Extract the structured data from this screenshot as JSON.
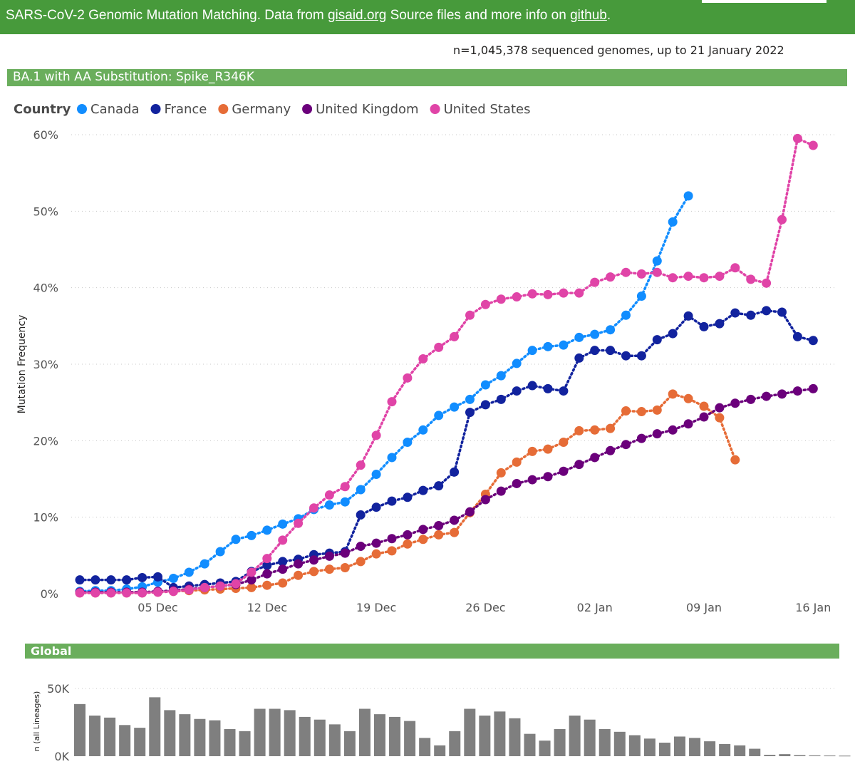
{
  "header": {
    "text_before": "SARS-CoV-2 Genomic Mutation Matching. Data from ",
    "link1": "gisaid.org",
    "text_middle": " Source files and more info on ",
    "link2": "github",
    "text_after": "."
  },
  "subtitle": "n=1,045,378 sequenced genomes, up to 21 January 2022",
  "panel_title": "BA.1 with AA Substitution: Spike_R346K",
  "global_title": "Global",
  "colors": {
    "Canada": "#118dff",
    "France": "#12239e",
    "Germany": "#e66c37",
    "United Kingdom": "#6b007b",
    "United States": "#e044a7",
    "bars": "#7f7f7f",
    "header": "#479a3b",
    "section": "#6aae5c"
  },
  "chart_data": [
    {
      "type": "line",
      "legend_title": "Country",
      "legend_position": "top-left",
      "ylabel": "Mutation Frequency",
      "ylim": [
        0,
        60
      ],
      "y_ticks": [
        "0%",
        "10%",
        "20%",
        "30%",
        "40%",
        "50%",
        "60%"
      ],
      "y_tick_values": [
        0,
        10,
        20,
        30,
        40,
        50,
        60
      ],
      "x_start": "2021-11-30",
      "x_ticks": [
        "05 Dec",
        "12 Dec",
        "19 Dec",
        "26 Dec",
        "02 Jan",
        "09 Jan",
        "16 Jan"
      ],
      "x_tick_dates": [
        "2021-12-05",
        "2021-12-12",
        "2021-12-19",
        "2021-12-26",
        "2022-01-02",
        "2022-01-09",
        "2022-01-16"
      ],
      "grid": true,
      "series": [
        {
          "name": "Canada",
          "start": "2021-11-30",
          "values": [
            0.3,
            0.4,
            0.4,
            0.6,
            0.9,
            1.5,
            2.0,
            2.8,
            3.9,
            5.5,
            7.1,
            7.6,
            8.3,
            9.1,
            9.8,
            11.0,
            11.6,
            12.0,
            13.6,
            15.6,
            17.8,
            19.8,
            21.4,
            23.3,
            24.4,
            25.4,
            27.3,
            28.5,
            30.1,
            31.8,
            32.3,
            32.5,
            33.5,
            33.9,
            34.5,
            36.4,
            38.9,
            43.5,
            48.6,
            52.0
          ]
        },
        {
          "name": "France",
          "start": "2021-11-30",
          "values": [
            1.8,
            1.8,
            1.8,
            1.8,
            2.1,
            2.2,
            0.8,
            1.0,
            1.2,
            1.4,
            1.6,
            2.9,
            3.7,
            4.2,
            4.5,
            5.1,
            5.3,
            5.5,
            10.3,
            11.3,
            12.1,
            12.6,
            13.5,
            14.1,
            15.9,
            23.7,
            24.7,
            25.4,
            26.5,
            27.2,
            26.8,
            26.5,
            30.8,
            31.8,
            31.8,
            31.1,
            31.1,
            33.2,
            34.0,
            36.3,
            34.9,
            35.3,
            36.7,
            36.4,
            37.0,
            36.8,
            33.6,
            33.1
          ]
        },
        {
          "name": "Germany",
          "start": "2021-11-30",
          "values": [
            0.1,
            0.1,
            0.1,
            0.1,
            0.1,
            0.2,
            0.3,
            0.4,
            0.5,
            0.6,
            0.7,
            0.8,
            1.1,
            1.4,
            2.4,
            2.9,
            3.2,
            3.4,
            4.2,
            5.2,
            5.6,
            6.5,
            7.1,
            7.7,
            8.0,
            10.6,
            13.0,
            15.8,
            17.2,
            18.6,
            18.9,
            19.8,
            21.3,
            21.4,
            21.6,
            23.9,
            23.8,
            24.0,
            26.1,
            25.5,
            24.5,
            23.0,
            17.5
          ]
        },
        {
          "name": "United Kingdom",
          "start": "2021-11-30",
          "values": [
            0.2,
            0.2,
            0.2,
            0.2,
            0.2,
            0.3,
            0.4,
            0.6,
            0.8,
            1.0,
            1.2,
            1.8,
            2.6,
            3.2,
            3.9,
            4.4,
            4.9,
            5.3,
            6.2,
            6.6,
            7.2,
            7.7,
            8.4,
            8.9,
            9.6,
            10.7,
            12.3,
            13.4,
            14.4,
            14.9,
            15.3,
            16.0,
            16.9,
            17.8,
            18.7,
            19.5,
            20.3,
            20.9,
            21.4,
            22.2,
            23.1,
            24.3,
            24.9,
            25.4,
            25.8,
            26.1,
            26.5,
            26.8
          ]
        },
        {
          "name": "United States",
          "start": "2021-11-30",
          "values": [
            0.1,
            0.1,
            0.1,
            0.1,
            0.1,
            0.2,
            0.3,
            0.5,
            0.8,
            1.0,
            1.3,
            2.8,
            4.6,
            7.0,
            9.2,
            11.2,
            12.9,
            14.0,
            16.8,
            20.7,
            25.1,
            28.2,
            30.7,
            32.2,
            33.6,
            36.4,
            37.8,
            38.5,
            38.8,
            39.2,
            39.1,
            39.3,
            39.3,
            40.7,
            41.4,
            42.0,
            41.8,
            42.0,
            41.3,
            41.5,
            41.3,
            41.5,
            42.6,
            41.1,
            40.6,
            48.9,
            59.5,
            58.6
          ]
        }
      ]
    },
    {
      "type": "bar",
      "title": "Global",
      "ylabel": "n (all Lineages)",
      "ylim": [
        0,
        50000
      ],
      "y_ticks": [
        "0K",
        "50K"
      ],
      "y_tick_values": [
        0,
        50000
      ],
      "start": "2021-11-30",
      "values": [
        38500,
        30000,
        28500,
        23000,
        21000,
        43500,
        34000,
        31000,
        27500,
        26500,
        20000,
        18500,
        35000,
        35000,
        34000,
        29000,
        27000,
        23500,
        18500,
        35000,
        31000,
        29000,
        26000,
        13500,
        8000,
        18500,
        35000,
        30000,
        33000,
        28000,
        16500,
        11500,
        20000,
        30000,
        27000,
        20000,
        18000,
        15500,
        13000,
        10000,
        14500,
        13500,
        11000,
        9000,
        8000,
        5500,
        1000,
        1500,
        800,
        600,
        500,
        400
      ]
    }
  ]
}
